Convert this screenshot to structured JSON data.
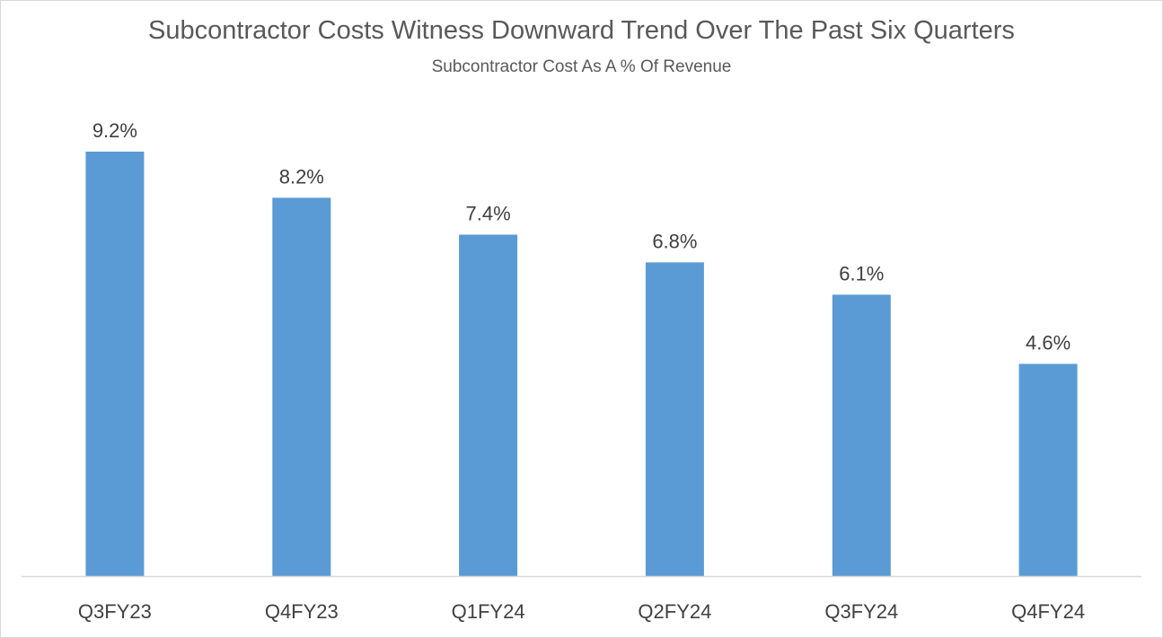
{
  "chart_data": {
    "type": "bar",
    "title": "Subcontractor Costs Witness Downward Trend Over The Past Six Quarters",
    "subtitle": "Subcontractor Cost As A % Of Revenue",
    "categories": [
      "Q3FY23",
      "Q4FY23",
      "Q1FY24",
      "Q2FY24",
      "Q3FY24",
      "Q4FY24"
    ],
    "values": [
      9.2,
      8.2,
      7.4,
      6.8,
      6.1,
      4.6
    ],
    "data_labels": [
      "9.2%",
      "8.2%",
      "7.4%",
      "6.8%",
      "6.1%",
      "4.6%"
    ],
    "xlabel": "",
    "ylabel": "",
    "ylim": [
      0,
      9.2
    ],
    "grid": false,
    "bar_color": "#5b9bd5",
    "axis_color": "#d9d9d9"
  }
}
